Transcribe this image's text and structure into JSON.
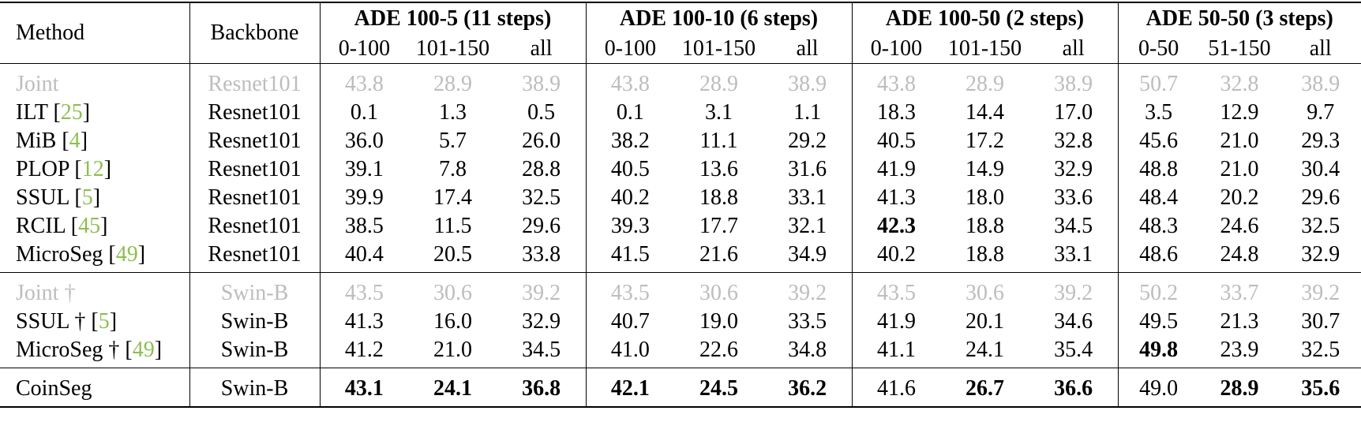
{
  "table": {
    "columns": {
      "method": "Method",
      "backbone": "Backbone"
    },
    "groups": [
      {
        "title": "ADE 100-5 (11 steps)",
        "subcolumns": [
          "0-100",
          "101-150",
          "all"
        ]
      },
      {
        "title": "ADE 100-10 (6 steps)",
        "subcolumns": [
          "0-100",
          "101-150",
          "all"
        ]
      },
      {
        "title": "ADE 100-50 (2 steps)",
        "subcolumns": [
          "0-100",
          "101-150",
          "all"
        ]
      },
      {
        "title": "ADE 50-50 (3 steps)",
        "subcolumns": [
          "0-50",
          "51-150",
          "all"
        ]
      }
    ],
    "sections": [
      {
        "rows": [
          {
            "method": [
              "Joint"
            ],
            "backbone": "Resnet101",
            "muted": true,
            "bold": [],
            "values": [
              "43.8",
              "28.9",
              "38.9",
              "43.8",
              "28.9",
              "38.9",
              "43.8",
              "28.9",
              "38.9",
              "50.7",
              "32.8",
              "38.9"
            ]
          },
          {
            "method": [
              "ILT [",
              "25",
              "]"
            ],
            "backbone": "Resnet101",
            "bold": [],
            "values": [
              "0.1",
              "1.3",
              "0.5",
              "0.1",
              "3.1",
              "1.1",
              "18.3",
              "14.4",
              "17.0",
              "3.5",
              "12.9",
              "9.7"
            ]
          },
          {
            "method": [
              "MiB [",
              "4",
              "]"
            ],
            "backbone": "Resnet101",
            "bold": [],
            "values": [
              "36.0",
              "5.7",
              "26.0",
              "38.2",
              "11.1",
              "29.2",
              "40.5",
              "17.2",
              "32.8",
              "45.6",
              "21.0",
              "29.3"
            ]
          },
          {
            "method": [
              "PLOP [",
              "12",
              "]"
            ],
            "backbone": "Resnet101",
            "bold": [],
            "values": [
              "39.1",
              "7.8",
              "28.8",
              "40.5",
              "13.6",
              "31.6",
              "41.9",
              "14.9",
              "32.9",
              "48.8",
              "21.0",
              "30.4"
            ]
          },
          {
            "method": [
              "SSUL [",
              "5",
              "]"
            ],
            "backbone": "Resnet101",
            "bold": [],
            "values": [
              "39.9",
              "17.4",
              "32.5",
              "40.2",
              "18.8",
              "33.1",
              "41.3",
              "18.0",
              "33.6",
              "48.4",
              "20.2",
              "29.6"
            ]
          },
          {
            "method": [
              "RCIL [",
              "45",
              "]"
            ],
            "backbone": "Resnet101",
            "bold": [
              6
            ],
            "values": [
              "38.5",
              "11.5",
              "29.6",
              "39.3",
              "17.7",
              "32.1",
              "42.3",
              "18.8",
              "34.5",
              "48.3",
              "24.6",
              "32.5"
            ]
          },
          {
            "method": [
              "MicroSeg [",
              "49",
              "]"
            ],
            "backbone": "Resnet101",
            "bold": [],
            "values": [
              "40.4",
              "20.5",
              "33.8",
              "41.5",
              "21.6",
              "34.9",
              "40.2",
              "18.8",
              "33.1",
              "48.6",
              "24.8",
              "32.9"
            ]
          }
        ]
      },
      {
        "rows": [
          {
            "method": [
              "Joint †"
            ],
            "backbone": "Swin-B",
            "muted": true,
            "bold": [],
            "values": [
              "43.5",
              "30.6",
              "39.2",
              "43.5",
              "30.6",
              "39.2",
              "43.5",
              "30.6",
              "39.2",
              "50.2",
              "33.7",
              "39.2"
            ]
          },
          {
            "method": [
              "SSUL † [",
              "5",
              "]"
            ],
            "backbone": "Swin-B",
            "bold": [],
            "values": [
              "41.3",
              "16.0",
              "32.9",
              "40.7",
              "19.0",
              "33.5",
              "41.9",
              "20.1",
              "34.6",
              "49.5",
              "21.3",
              "30.7"
            ]
          },
          {
            "method": [
              "MicroSeg † [",
              "49",
              "]"
            ],
            "backbone": "Swin-B",
            "bold": [
              9
            ],
            "values": [
              "41.2",
              "21.0",
              "34.5",
              "41.0",
              "22.6",
              "34.8",
              "41.1",
              "24.1",
              "35.4",
              "49.8",
              "23.9",
              "32.5"
            ]
          }
        ]
      },
      {
        "rows": [
          {
            "method": [
              "CoinSeg"
            ],
            "backbone": "Swin-B",
            "bold": [
              0,
              1,
              2,
              3,
              4,
              5,
              7,
              8,
              10,
              11
            ],
            "values": [
              "43.1",
              "24.1",
              "36.8",
              "42.1",
              "24.5",
              "36.2",
              "41.6",
              "26.7",
              "36.6",
              "49.0",
              "28.9",
              "35.6"
            ]
          }
        ]
      }
    ]
  }
}
